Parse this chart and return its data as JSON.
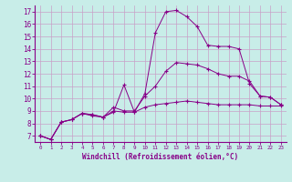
{
  "title": "",
  "xlabel": "Windchill (Refroidissement éolien,°C)",
  "background_color": "#c8ede8",
  "grid_color": "#c8a0c8",
  "line_color": "#880088",
  "spine_color": "#880088",
  "label_color": "#880088",
  "xlim": [
    -0.5,
    23.5
  ],
  "ylim": [
    6.5,
    17.5
  ],
  "xticks": [
    0,
    1,
    2,
    3,
    4,
    5,
    6,
    7,
    8,
    9,
    10,
    11,
    12,
    13,
    14,
    15,
    16,
    17,
    18,
    19,
    20,
    21,
    22,
    23
  ],
  "yticks": [
    7,
    8,
    9,
    10,
    11,
    12,
    13,
    14,
    15,
    16,
    17
  ],
  "series": [
    [
      7.0,
      6.7,
      8.1,
      8.3,
      8.8,
      8.6,
      8.5,
      8.9,
      11.1,
      8.9,
      10.4,
      15.3,
      17.0,
      17.1,
      16.6,
      15.8,
      14.3,
      14.2,
      14.2,
      14.0,
      11.2,
      10.2,
      10.1,
      9.5
    ],
    [
      7.0,
      6.7,
      8.1,
      8.3,
      8.8,
      8.7,
      8.5,
      9.3,
      9.0,
      9.0,
      10.2,
      11.0,
      12.2,
      12.9,
      12.8,
      12.7,
      12.4,
      12.0,
      11.8,
      11.8,
      11.4,
      10.2,
      10.1,
      9.5
    ],
    [
      7.0,
      6.7,
      8.1,
      8.3,
      8.8,
      8.7,
      8.5,
      9.0,
      8.9,
      8.9,
      9.3,
      9.5,
      9.6,
      9.7,
      9.8,
      9.7,
      9.6,
      9.5,
      9.5,
      9.5,
      9.5,
      9.4,
      9.4,
      9.4
    ]
  ]
}
